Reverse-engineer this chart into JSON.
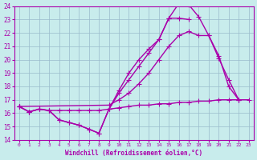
{
  "xlabel": "Windchill (Refroidissement éolien,°C)",
  "xlim": [
    -0.5,
    23.5
  ],
  "ylim": [
    14,
    24
  ],
  "xticks": [
    0,
    1,
    2,
    3,
    4,
    5,
    6,
    7,
    8,
    9,
    10,
    11,
    12,
    13,
    14,
    15,
    16,
    17,
    18,
    19,
    20,
    21,
    22,
    23
  ],
  "yticks": [
    14,
    15,
    16,
    17,
    18,
    19,
    20,
    21,
    22,
    23,
    24
  ],
  "line_color": "#aa00aa",
  "background_color": "#c8ecec",
  "grid_color": "#99bbcc",
  "line1": {
    "x": [
      0,
      1,
      2,
      3,
      4,
      5,
      6,
      7,
      8,
      9,
      10,
      11,
      12,
      13,
      14,
      15,
      16,
      17,
      18,
      19,
      20,
      21,
      22
    ],
    "y": [
      16.5,
      16.1,
      16.3,
      16.2,
      15.5,
      15.3,
      15.1,
      14.8,
      14.5,
      16.3,
      17.7,
      19.0,
      20.0,
      20.8,
      21.5,
      23.1,
      24.2,
      24.1,
      23.2,
      21.8,
      20.1,
      18.5,
      17.0
    ]
  },
  "line2": {
    "x": [
      0,
      1,
      2,
      3,
      4,
      5,
      6,
      7,
      8,
      9,
      10,
      11,
      12,
      13,
      14,
      15,
      16,
      17
    ],
    "y": [
      16.5,
      16.1,
      16.3,
      16.2,
      15.5,
      15.3,
      15.1,
      14.8,
      14.5,
      16.3,
      17.5,
      18.5,
      19.5,
      20.5,
      21.5,
      23.1,
      23.1,
      23.0
    ]
  },
  "line3": {
    "x": [
      0,
      9,
      10,
      11,
      12,
      13,
      14,
      15,
      16,
      17,
      18,
      19,
      20,
      21,
      22
    ],
    "y": [
      16.5,
      16.6,
      17.0,
      17.5,
      18.2,
      19.0,
      20.0,
      21.0,
      21.8,
      22.1,
      21.8,
      21.8,
      20.3,
      18.0,
      17.0
    ]
  },
  "line4": {
    "x": [
      0,
      1,
      2,
      3,
      4,
      5,
      6,
      7,
      8,
      9,
      10,
      11,
      12,
      13,
      14,
      15,
      16,
      17,
      18,
      19,
      20,
      21,
      22,
      23
    ],
    "y": [
      16.5,
      16.1,
      16.3,
      16.2,
      16.2,
      16.2,
      16.2,
      16.2,
      16.2,
      16.3,
      16.4,
      16.5,
      16.6,
      16.6,
      16.7,
      16.7,
      16.8,
      16.8,
      16.9,
      16.9,
      17.0,
      17.0,
      17.0,
      17.0
    ]
  },
  "marker": "+",
  "markersize": 4,
  "linewidth": 1.0
}
